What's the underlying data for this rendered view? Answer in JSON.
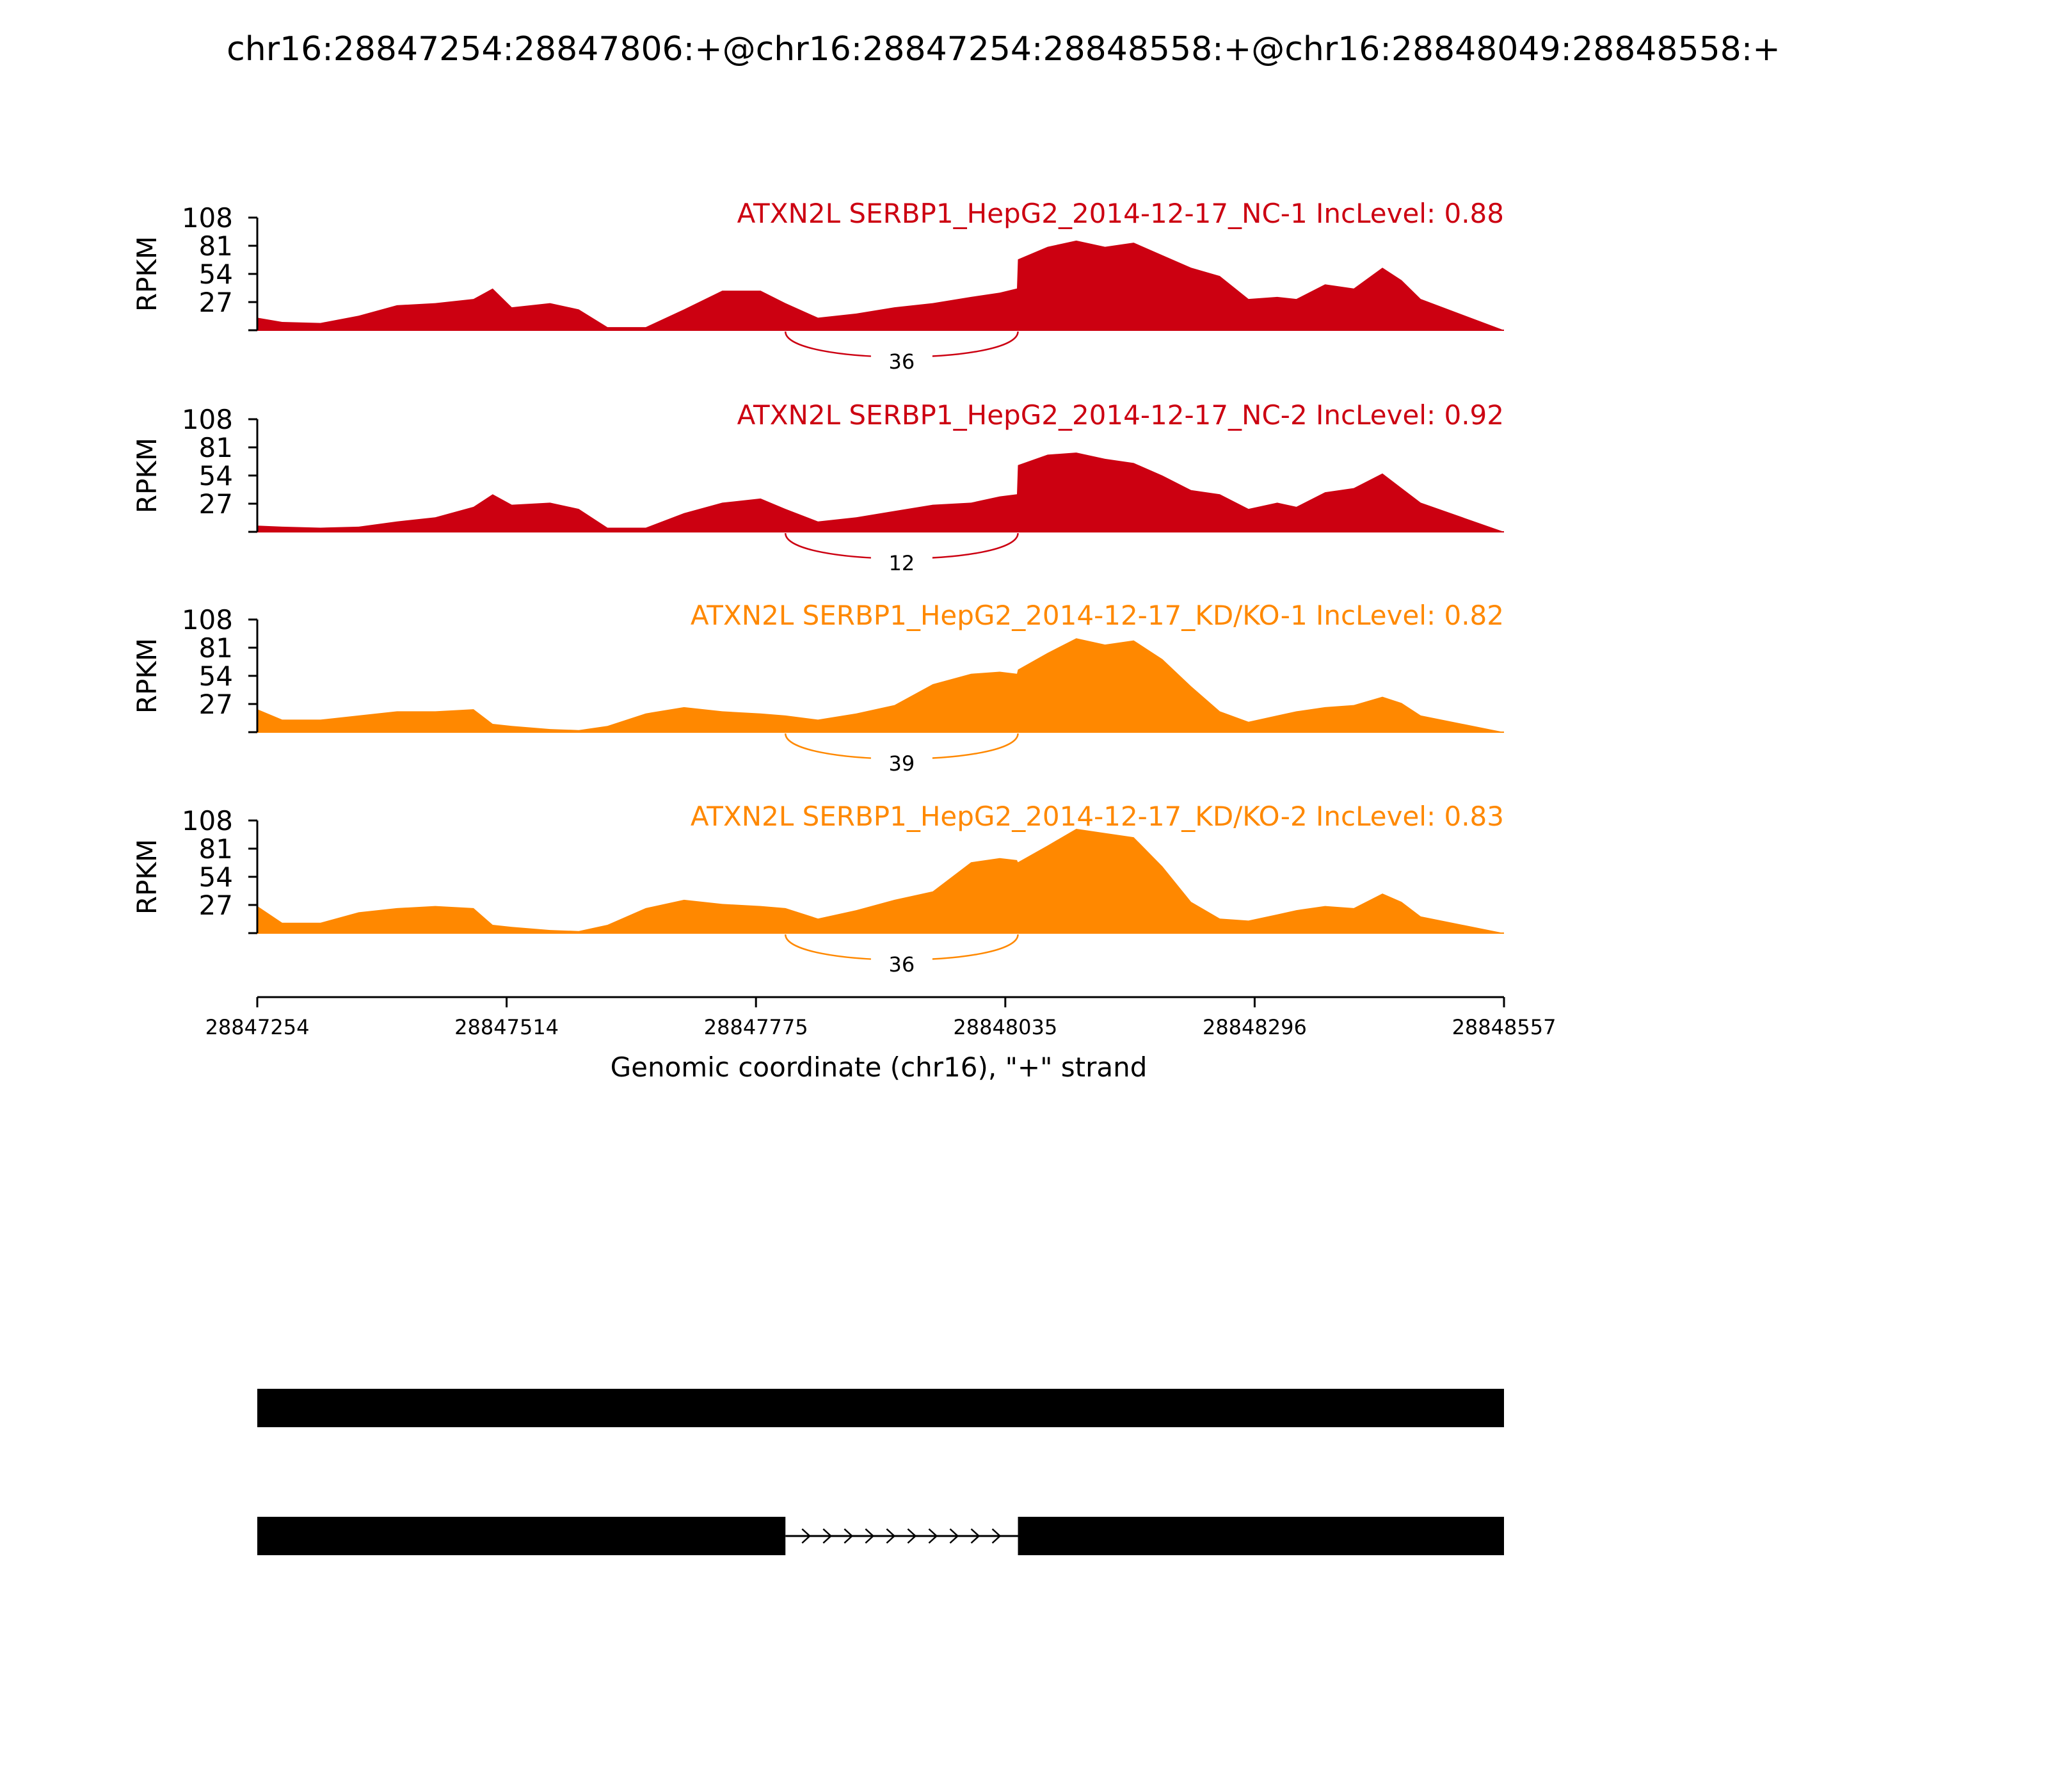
{
  "title": "chr16:28847254:28847806:+@chr16:28847254:28848558:+@chr16:28848049:28848558:+",
  "chart_data": {
    "type": "area",
    "xlabel": "Genomic coordinate (chr16), \"+\" strand",
    "ylabel": "RPKM",
    "xlim": [
      28847254,
      28848557
    ],
    "ylim": [
      0,
      108
    ],
    "x_ticks": [
      "28847254",
      "28847514",
      "28847775",
      "28848035",
      "28848296",
      "28848557"
    ],
    "y_ticks": [
      "27",
      "54",
      "81",
      "108"
    ],
    "colors": {
      "NC": "#cc0011",
      "KD": "#ff8800",
      "model": "#000000"
    },
    "x": [
      28847254,
      28847280,
      28847320,
      28847360,
      28847400,
      28847440,
      28847480,
      28847500,
      28847520,
      28847560,
      28847590,
      28847620,
      28847660,
      28847700,
      28847740,
      28847780,
      28847806,
      28847840,
      28847880,
      28847920,
      28847960,
      28848000,
      28848030,
      28848048,
      28848049,
      28848080,
      28848110,
      28848140,
      28848170,
      28848200,
      28848230,
      28848260,
      28848290,
      28848320,
      28848340,
      28848370,
      28848400,
      28848430,
      28848450,
      28848470,
      28848557
    ],
    "series": [
      {
        "name": "ATXN2L SERBP1_HepG2_2014-12-17_NC-1 IncLevel: 0.88",
        "color": "#cc0011",
        "junction": {
          "from": 28847806,
          "to": 28848049,
          "count": "36"
        },
        "values": [
          12,
          8,
          7,
          14,
          24,
          26,
          30,
          40,
          22,
          26,
          20,
          3,
          3,
          20,
          38,
          38,
          26,
          12,
          16,
          22,
          26,
          32,
          36,
          40,
          68,
          80,
          86,
          80,
          84,
          72,
          60,
          52,
          30,
          32,
          30,
          44,
          40,
          60,
          48,
          30,
          0
        ]
      },
      {
        "name": "ATXN2L SERBP1_HepG2_2014-12-17_NC-2 IncLevel: 0.92",
        "color": "#cc0011",
        "junction": {
          "from": 28847806,
          "to": 28848049,
          "count": "12"
        },
        "values": [
          6,
          5,
          4,
          5,
          10,
          14,
          24,
          36,
          26,
          28,
          22,
          4,
          4,
          18,
          28,
          32,
          22,
          10,
          14,
          20,
          26,
          28,
          34,
          36,
          64,
          74,
          76,
          70,
          66,
          54,
          40,
          36,
          22,
          28,
          24,
          38,
          42,
          56,
          42,
          28,
          0
        ]
      },
      {
        "name": "ATXN2L SERBP1_HepG2_2014-12-17_KD/KO-1 IncLevel: 0.82",
        "color": "#ff8800",
        "junction": {
          "from": 28847806,
          "to": 28848049,
          "count": "39"
        },
        "values": [
          22,
          12,
          12,
          16,
          20,
          20,
          22,
          8,
          6,
          3,
          2,
          6,
          18,
          24,
          20,
          18,
          16,
          12,
          18,
          26,
          46,
          56,
          58,
          56,
          60,
          76,
          90,
          84,
          88,
          70,
          44,
          20,
          10,
          16,
          20,
          24,
          26,
          34,
          28,
          16,
          0
        ]
      },
      {
        "name": "ATXN2L SERBP1_HepG2_2014-12-17_KD/KO-2 IncLevel: 0.83",
        "color": "#ff8800",
        "junction": {
          "from": 28847806,
          "to": 28848049,
          "count": "36"
        },
        "values": [
          26,
          10,
          10,
          20,
          24,
          26,
          24,
          8,
          6,
          3,
          2,
          8,
          24,
          32,
          28,
          26,
          24,
          14,
          22,
          32,
          40,
          68,
          72,
          70,
          68,
          84,
          100,
          96,
          92,
          64,
          30,
          14,
          12,
          18,
          22,
          26,
          24,
          38,
          30,
          16,
          0
        ]
      }
    ],
    "gene_models": [
      {
        "exons": [
          [
            28847254,
            28848557
          ]
        ]
      },
      {
        "exons": [
          [
            28847254,
            28847806
          ],
          [
            28848049,
            28848557
          ]
        ],
        "intron_strand": "+"
      }
    ]
  }
}
